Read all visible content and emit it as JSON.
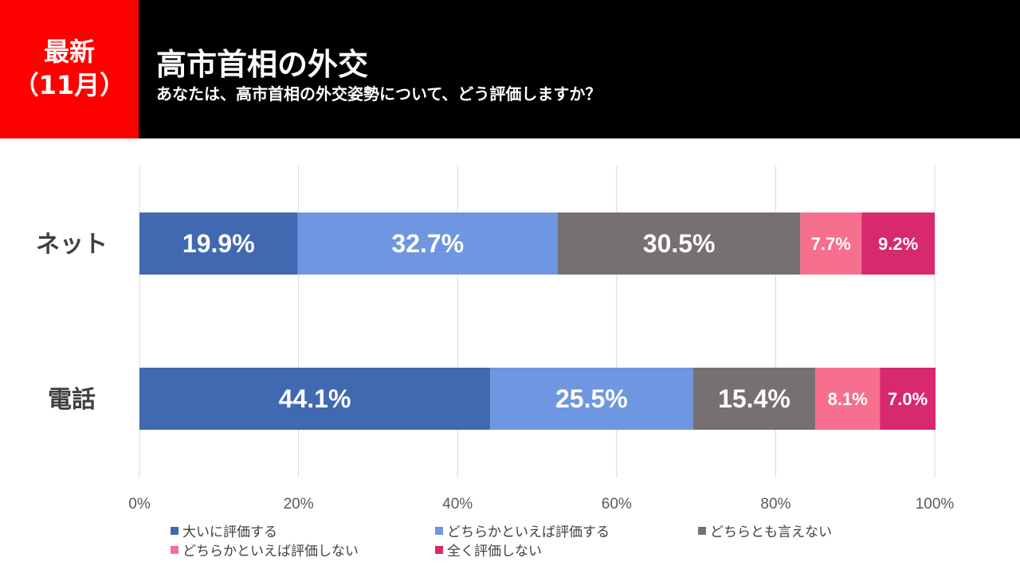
{
  "header": {
    "badge_line1": "最新",
    "badge_line2": "（11月）",
    "title": "高市首相の外交",
    "subtitle": "あなたは、高市首相の外交姿勢について、どう評価しますか？"
  },
  "chart_data": {
    "type": "bar",
    "orientation": "horizontal",
    "stacked": true,
    "title": "高市首相の外交",
    "categories": [
      "ネット",
      "電話"
    ],
    "xlim": [
      0,
      100
    ],
    "x_ticks": [
      "0%",
      "20%",
      "40%",
      "60%",
      "80%",
      "100%"
    ],
    "grid": true,
    "legend_position": "bottom",
    "series": [
      {
        "name": "大いに評価する",
        "color": "#4169b1",
        "values": [
          19.9,
          44.1
        ],
        "labels": [
          "19.9%",
          "44.1%"
        ]
      },
      {
        "name": "どちらかといえば評価する",
        "color": "#6f96e0",
        "values": [
          32.7,
          25.5
        ],
        "labels": [
          "32.7%",
          "25.5%"
        ]
      },
      {
        "name": "どちらとも言えない",
        "color": "#767171",
        "values": [
          30.5,
          15.4
        ],
        "labels": [
          "30.5%",
          "15.4%"
        ]
      },
      {
        "name": "どちらかといえば評価しない",
        "color": "#f76f8e",
        "values": [
          7.7,
          8.1
        ],
        "labels": [
          "7.7%",
          "8.1%"
        ]
      },
      {
        "name": "全く評価しない",
        "color": "#d8286e",
        "values": [
          9.2,
          7.0
        ],
        "labels": [
          "9.2%",
          "7.0%"
        ]
      }
    ]
  }
}
